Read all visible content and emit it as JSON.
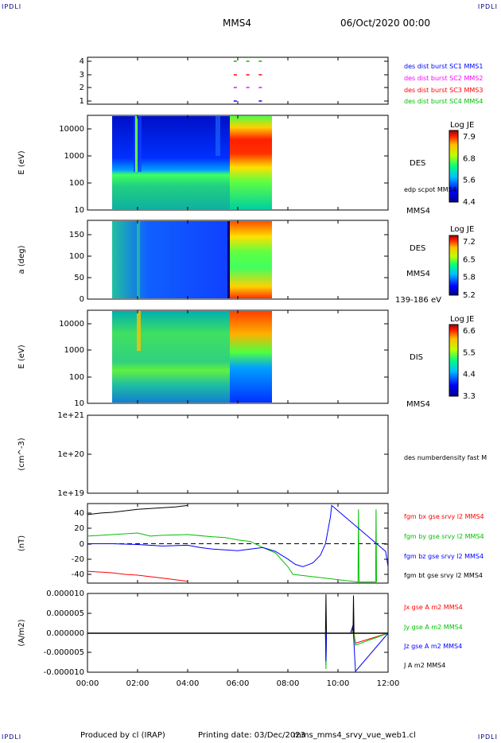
{
  "corners": {
    "tl": "IPDLI",
    "tr": "IPDLI",
    "bl": "IPDLI",
    "br": "IPDLI"
  },
  "header": {
    "spacecraft": "MMS4",
    "date": "06/Oct/2020 00:00"
  },
  "footer": {
    "produced": "Produced by cl (IRAP)",
    "printing": "Printing date: 03/Dec/2023",
    "file": "mms_mms4_srvy_vue_web1.cl"
  },
  "x_axis": {
    "ticks": [
      "00:00",
      "02:00",
      "04:00",
      "06:00",
      "08:00",
      "10:00",
      "12:00"
    ],
    "range_hours": [
      0,
      12
    ]
  },
  "colors": {
    "mms1": "#0000ff",
    "mms2": "#ff00ff",
    "mms3": "#ff0000",
    "mms4": "#00c000",
    "bx": "#ff0000",
    "by": "#00c000",
    "bz": "#0000ff",
    "bt": "#000000"
  },
  "chart_data": [
    {
      "type": "scatter",
      "panel": "burst-availability",
      "ylabel": "",
      "yticks": [
        "1",
        "2",
        "3",
        "4"
      ],
      "ylim": [
        0.5,
        4.5
      ],
      "series": [
        {
          "name": "des dist burst SC1 MMS1",
          "y": 1,
          "x": [
            5.9,
            6.9
          ]
        },
        {
          "name": "des dist burst SC2 MMS2",
          "y": 2,
          "x": [
            5.9,
            6.4,
            6.9
          ]
        },
        {
          "name": "des dist burst SC3 MMS3",
          "y": 3,
          "x": [
            5.9,
            6.4,
            6.9
          ]
        },
        {
          "name": "des dist burst SC4 MMS4",
          "y": 4,
          "x": [
            5.9,
            6.4,
            6.9
          ]
        }
      ]
    },
    {
      "type": "heatmap",
      "panel": "des-energy",
      "ylabel": "E (eV)",
      "yticks": [
        "10000",
        "1000",
        "100",
        "10"
      ],
      "ylim": [
        10,
        30000
      ],
      "right_labels": [
        "DES",
        "edp scpot MMS4",
        "MMS4"
      ],
      "colorbar": {
        "title": "Log JE",
        "ticks": [
          "7.9",
          "6.8",
          "5.6",
          "4.4"
        ]
      },
      "data_range_hours": [
        1.0,
        7.3
      ]
    },
    {
      "type": "heatmap",
      "panel": "des-pitch",
      "ylabel": "a (deg)",
      "yticks": [
        "150",
        "100",
        "50",
        "0"
      ],
      "ylim": [
        0,
        180
      ],
      "right_labels": [
        "DES",
        "MMS4",
        "139-186 eV"
      ],
      "colorbar": {
        "title": "Log JE",
        "ticks": [
          "7.2",
          "6.5",
          "5.8",
          "5.2"
        ]
      },
      "data_range_hours": [
        1.0,
        7.3
      ]
    },
    {
      "type": "heatmap",
      "panel": "dis-energy",
      "ylabel": "E (eV)",
      "yticks": [
        "10000",
        "1000",
        "100",
        "10"
      ],
      "ylim": [
        10,
        30000
      ],
      "right_labels": [
        "DIS",
        "MMS4"
      ],
      "colorbar": {
        "title": "Log JE",
        "ticks": [
          "6.6",
          "5.5",
          "4.4",
          "3.3"
        ]
      },
      "data_range_hours": [
        1.0,
        7.3
      ]
    },
    {
      "type": "line",
      "panel": "density",
      "ylabel": "(cm^-3)",
      "yticks": [
        "1e+21",
        "1e+20",
        "1e+19"
      ],
      "series": [
        {
          "name": "des numberdensity fast M",
          "x": [],
          "y": []
        }
      ]
    },
    {
      "type": "line",
      "panel": "fgm",
      "ylabel": "(nT)",
      "yticks": [
        "40",
        "20",
        "0",
        "-20",
        "-40"
      ],
      "ylim": [
        -50,
        50
      ],
      "series": [
        {
          "name": "fgm bx gse srvy l2 MMS4",
          "x": [
            0,
            0.5,
            1,
            1.5,
            2,
            2.5,
            3,
            3.5,
            4
          ],
          "y": [
            -36,
            -37,
            -38,
            -40,
            -41,
            -43,
            -45,
            -47,
            -49
          ]
        },
        {
          "name": "fgm by gse srvy l2 MMS4",
          "x": [
            0,
            1,
            2,
            2.5,
            3,
            4,
            5,
            5.5,
            6,
            6.5,
            7,
            7.5,
            8,
            8.2,
            10.8,
            10.82,
            10.84,
            11.5,
            11.52,
            11.54
          ],
          "y": [
            10,
            12,
            14,
            10,
            11,
            12,
            9,
            8,
            5,
            3,
            -5,
            -12,
            -30,
            -40,
            -50,
            45,
            -50,
            -50,
            45,
            -50
          ]
        },
        {
          "name": "fgm bz gse srvy l2 MMS4",
          "x": [
            0,
            1,
            2,
            3,
            4,
            4.5,
            5,
            5.5,
            6,
            6.5,
            7,
            7.5,
            8,
            8.3,
            8.6,
            9,
            9.3,
            9.5,
            9.7,
            9.75,
            11.9,
            12
          ],
          "y": [
            0,
            0,
            -1,
            -3,
            -2,
            -5,
            -7,
            -8,
            -9,
            -7,
            -5,
            -10,
            -20,
            -27,
            -30,
            -25,
            -15,
            0,
            35,
            50,
            -10,
            -30
          ]
        },
        {
          "name": "fgm bt gse srvy l2 MMS4",
          "x": [
            0,
            0.5,
            1,
            1.5,
            2,
            2.5,
            3,
            3.5,
            4
          ],
          "y": [
            38,
            40,
            41,
            43,
            45,
            46,
            47,
            48,
            50
          ]
        }
      ]
    },
    {
      "type": "line",
      "panel": "current",
      "ylabel": "(A/m2)",
      "yticks": [
        "0.000010",
        "0.000005",
        "0.000000",
        "-0.000005",
        "-0.000010"
      ],
      "ylim": [
        -1e-05,
        1e-05
      ],
      "series": [
        {
          "name": "Jx gse A m2 MMS4",
          "x": [
            0,
            9.5,
            9.52,
            9.54,
            10.5,
            10.6,
            10.7,
            12
          ],
          "y": [
            0,
            0,
            -8e-06,
            0,
            0,
            1.5e-06,
            -2.5e-06,
            0
          ]
        },
        {
          "name": "Jy gse A m2 MMS4",
          "x": [
            0,
            9.5,
            9.52,
            9.54,
            10.5,
            10.6,
            10.7,
            12
          ],
          "y": [
            0,
            0,
            -9e-06,
            0,
            0,
            1e-06,
            -3e-06,
            0
          ]
        },
        {
          "name": "Jz gse A m2 MMS4",
          "x": [
            0,
            9.5,
            9.52,
            9.54,
            10.5,
            10.6,
            10.7,
            12
          ],
          "y": [
            0,
            0,
            -7e-06,
            0,
            0,
            2e-06,
            -1e-05,
            0
          ]
        },
        {
          "name": "J A m2 MMS4",
          "x": [
            0,
            9.5,
            9.52,
            9.54,
            10.6,
            10.62,
            10.64,
            12
          ],
          "y": [
            0,
            0,
            1e-05,
            0,
            0,
            9.5e-06,
            0,
            0
          ]
        }
      ]
    }
  ]
}
